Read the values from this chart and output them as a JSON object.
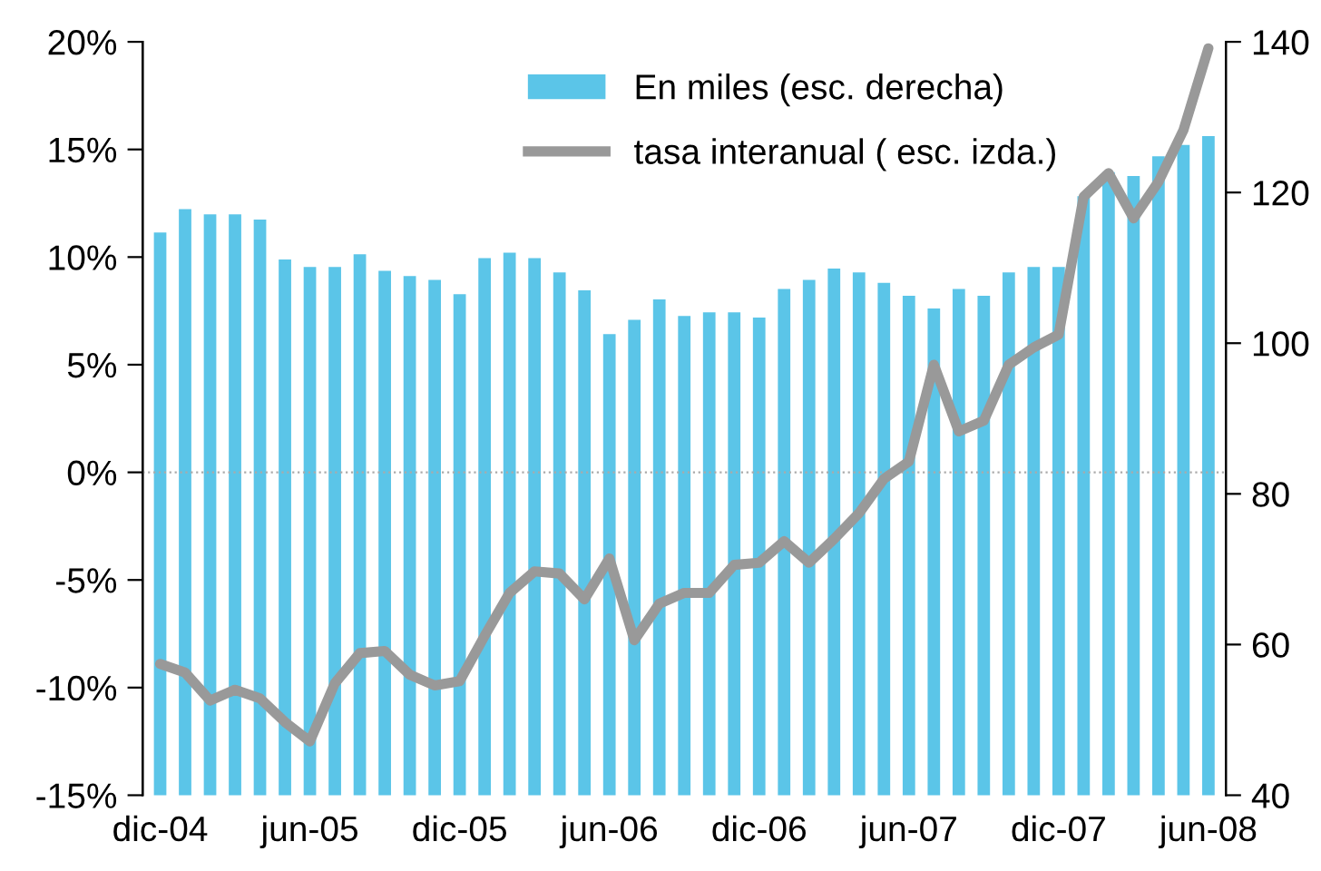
{
  "chart_data": {
    "type": "bar",
    "categories": [
      "dic-04",
      null,
      null,
      null,
      null,
      null,
      "jun-05",
      null,
      null,
      null,
      null,
      null,
      "dic-05",
      null,
      null,
      null,
      null,
      null,
      "jun-06",
      null,
      null,
      null,
      null,
      null,
      "dic-06",
      null,
      null,
      null,
      null,
      null,
      "jun-07",
      null,
      null,
      null,
      null,
      null,
      "dic-07",
      null,
      null,
      null,
      null,
      null,
      "jun-08"
    ],
    "series": [
      {
        "name": "En miles (esc. derecha)",
        "axis": "y2",
        "color": "#5bc5e8",
        "values": [
          114.7,
          117.8,
          117.1,
          117.1,
          116.4,
          111.1,
          110.1,
          110.1,
          111.8,
          109.6,
          108.9,
          108.4,
          106.5,
          111.3,
          112.0,
          111.3,
          109.4,
          107.0,
          101.2,
          103.1,
          105.8,
          103.6,
          104.1,
          104.1,
          103.4,
          107.2,
          108.4,
          109.9,
          109.4,
          108.0,
          106.3,
          104.6,
          107.2,
          106.3,
          109.4,
          110.1,
          110.1,
          119.5,
          122.7,
          122.2,
          124.8,
          126.3,
          127.5
        ]
      },
      {
        "name": "tasa interanual ( esc. izda.)",
        "type": "line",
        "axis": "y",
        "color": "#999999",
        "values": [
          -8.9,
          -9.3,
          -10.6,
          -10.1,
          -10.5,
          -11.6,
          -12.5,
          -9.8,
          -8.4,
          -8.3,
          -9.4,
          -9.9,
          -9.7,
          -7.6,
          -5.6,
          -4.6,
          -4.7,
          -5.9,
          -4.0,
          -7.8,
          -6.1,
          -5.6,
          -5.6,
          -4.3,
          -4.2,
          -3.2,
          -4.2,
          -3.1,
          -1.9,
          -0.3,
          0.5,
          5.0,
          1.9,
          2.4,
          5.0,
          5.8,
          6.4,
          12.8,
          13.9,
          11.8,
          13.5,
          15.9,
          19.7
        ]
      }
    ],
    "ylim": [
      -15,
      20
    ],
    "yticks": [
      {
        "value": -15,
        "label": "-15%"
      },
      {
        "value": -10,
        "label": "-10%"
      },
      {
        "value": -5,
        "label": "-5%"
      },
      {
        "value": 0,
        "label": "0%"
      },
      {
        "value": 5,
        "label": "5%"
      },
      {
        "value": 10,
        "label": "10%"
      },
      {
        "value": 15,
        "label": "15%"
      },
      {
        "value": 20,
        "label": "20%"
      }
    ],
    "y2lim": [
      40,
      140
    ],
    "y2ticks": [
      40,
      60,
      80,
      100,
      120,
      140
    ],
    "ref_lines": [
      {
        "axis": "y",
        "value": 0,
        "label": null,
        "color": "#aaaaaa",
        "line_style": "dotted"
      }
    ],
    "grid": false,
    "legend": "top"
  }
}
